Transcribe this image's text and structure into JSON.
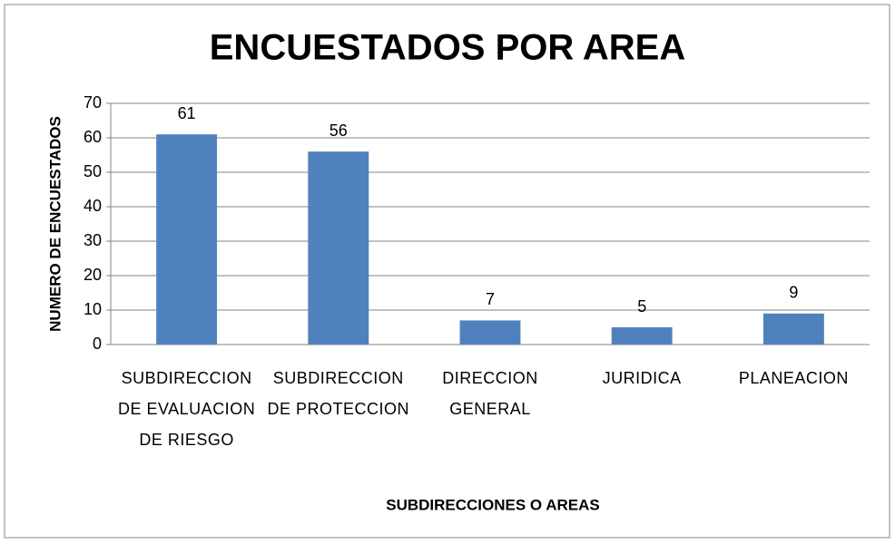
{
  "chart_data": {
    "type": "bar",
    "title": "ENCUESTADOS POR AREA",
    "x_label": "SUBDIRECCIONES O AREAS",
    "y_label": "NUMERO DE ENCUESTADOS",
    "categories": [
      "SUBDIRECCION DE EVALUACION DE RIESGO",
      "SUBDIRECCION DE PROTECCION",
      "DIRECCION GENERAL",
      "JURIDICA",
      "PLANEACION"
    ],
    "values": [
      61,
      56,
      7,
      5,
      9
    ],
    "color": "#4f81bd",
    "ylim": [
      0,
      70
    ],
    "yticks": [
      0,
      10,
      20,
      30,
      40,
      50,
      60,
      70
    ],
    "grid": true
  }
}
